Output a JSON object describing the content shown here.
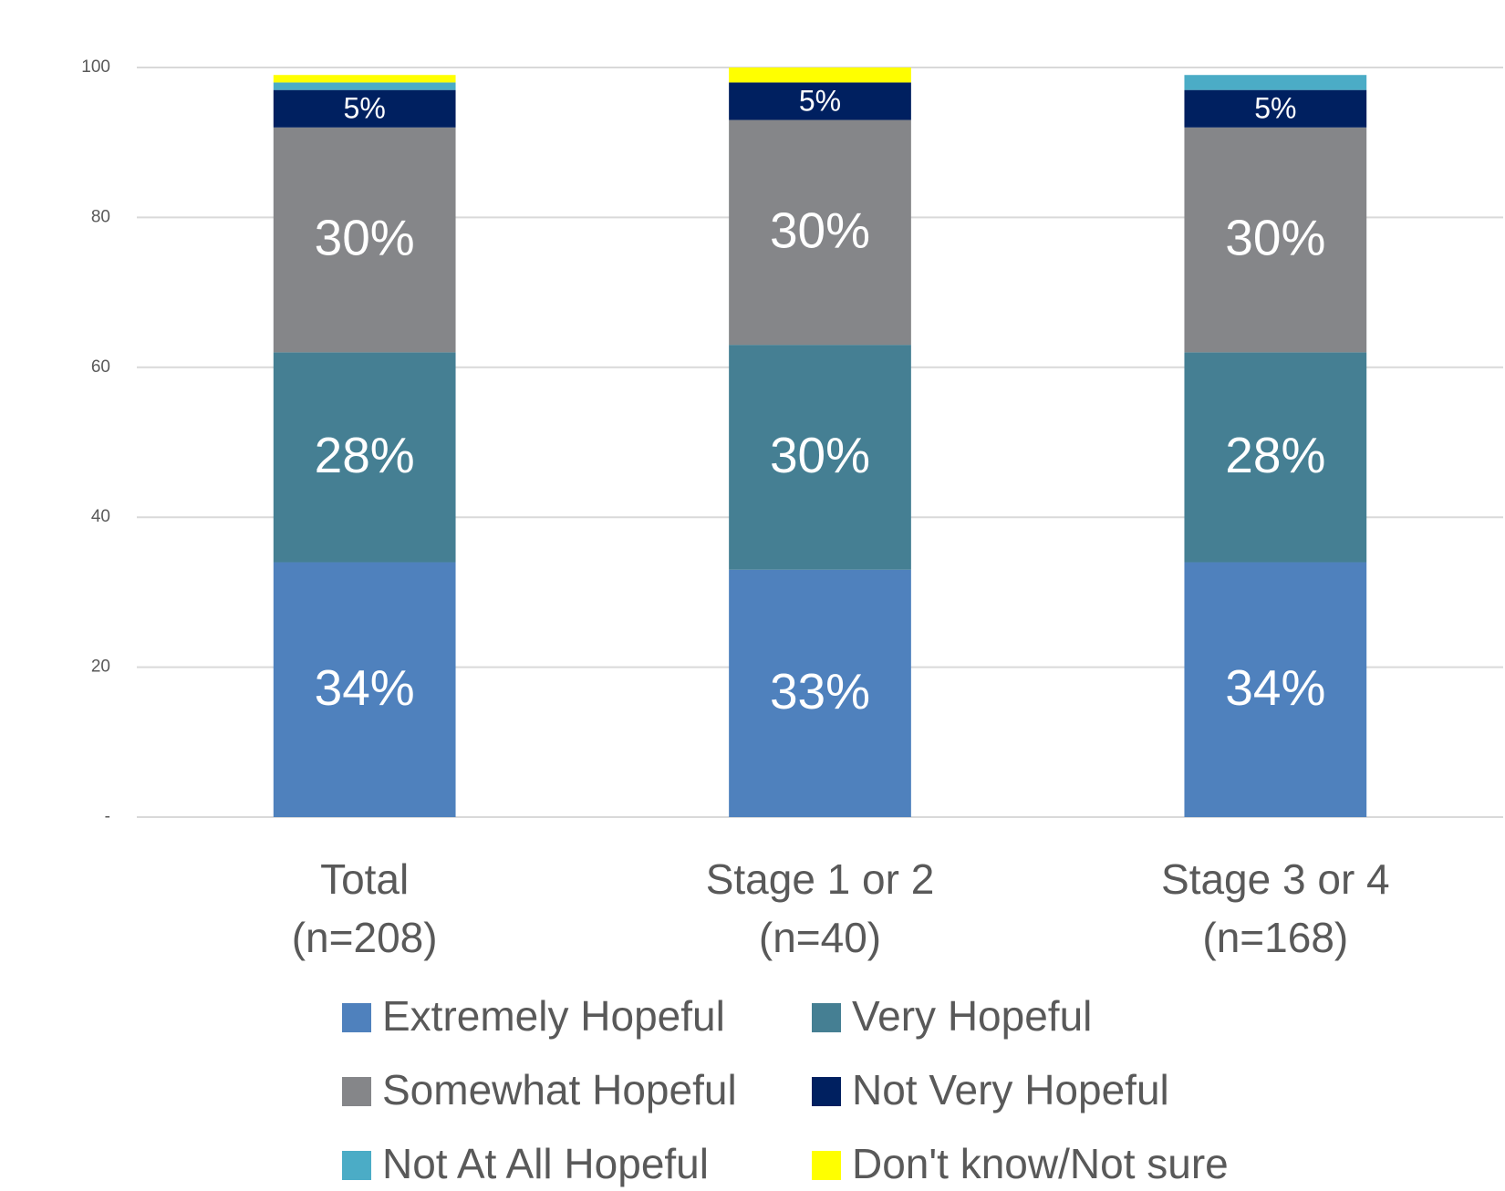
{
  "chart_data": {
    "type": "stacked_bar",
    "categories": [
      "Total\n(n=208)",
      "Stage 1 or 2\n(n=40)",
      "Stage 3 or 4\n(n=168)"
    ],
    "series": [
      {
        "name": "Extremely Hopeful",
        "color": "#4f81bd",
        "values": [
          34,
          33,
          34
        ],
        "value_labels": [
          "34%",
          "33%",
          "34%"
        ]
      },
      {
        "name": "Very Hopeful",
        "color": "#457f93",
        "values": [
          28,
          30,
          28
        ],
        "value_labels": [
          "28%",
          "30%",
          "28%"
        ]
      },
      {
        "name": "Somewhat Hopeful",
        "color": "#858689",
        "values": [
          30,
          30,
          30
        ],
        "value_labels": [
          "30%",
          "30%",
          "30%"
        ]
      },
      {
        "name": "Not Very Hopeful",
        "color": "#002060",
        "values": [
          5,
          5,
          5
        ],
        "value_labels": [
          "5%",
          "5%",
          "5%"
        ]
      },
      {
        "name": "Not At All Hopeful",
        "color": "#4bacc6",
        "values": [
          1,
          0,
          2
        ]
      },
      {
        "name": "Don't know/Not sure",
        "color": "#ffff00",
        "values": [
          1,
          2,
          0
        ]
      }
    ],
    "ylim": [
      0,
      100
    ],
    "yticks": [
      {
        "value": 0,
        "label": "-"
      },
      20,
      40,
      60,
      80,
      100
    ],
    "grid": true
  }
}
